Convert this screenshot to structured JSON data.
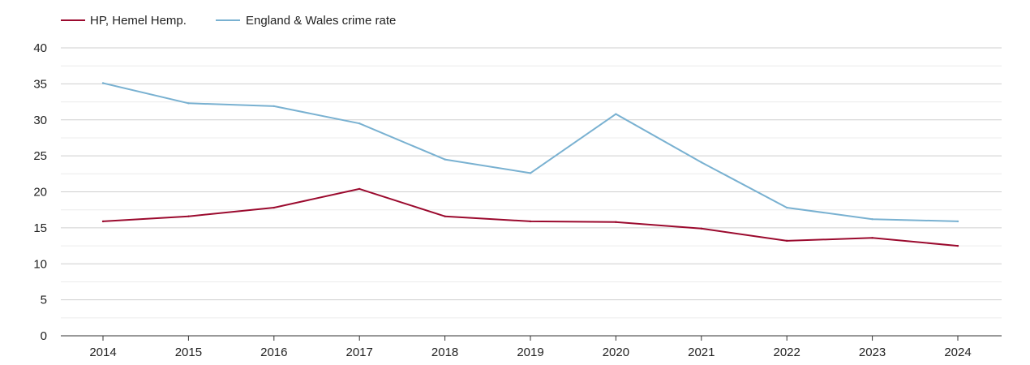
{
  "chart_data": {
    "type": "line",
    "x": [
      "2014",
      "2015",
      "2016",
      "2017",
      "2018",
      "2019",
      "2020",
      "2021",
      "2022",
      "2023",
      "2024"
    ],
    "series": [
      {
        "name": "HP, Hemel Hemp.",
        "color": "#9b0a2e",
        "values": [
          15.9,
          16.6,
          17.8,
          20.4,
          16.6,
          15.9,
          15.8,
          14.9,
          13.2,
          13.6,
          12.5
        ]
      },
      {
        "name": "England & Wales crime rate",
        "color": "#79b1d1",
        "values": [
          35.1,
          32.3,
          31.9,
          29.5,
          24.5,
          22.6,
          30.8,
          24.1,
          17.8,
          16.2,
          15.9
        ]
      }
    ],
    "ylim": [
      0,
      40
    ],
    "yticks": [
      "0",
      "5",
      "10",
      "15",
      "20",
      "25",
      "30",
      "35",
      "40"
    ],
    "title": "",
    "xlabel": "",
    "ylabel": "",
    "grid": true,
    "legend": "top-left"
  }
}
